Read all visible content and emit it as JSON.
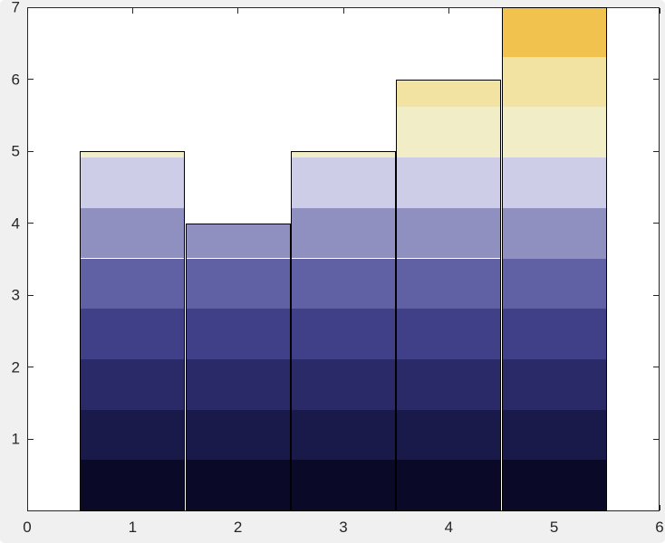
{
  "chart_data": {
    "type": "bar",
    "title": "",
    "xlabel": "",
    "ylabel": "",
    "x": [
      1,
      2,
      3,
      4,
      5
    ],
    "values": [
      5,
      4,
      5,
      6,
      7
    ],
    "bar_width": 1,
    "xlim": [
      0,
      6
    ],
    "ylim": [
      0,
      7
    ],
    "xticks": [
      0,
      1,
      2,
      3,
      4,
      5,
      6
    ],
    "yticks": [
      1,
      2,
      3,
      4,
      5,
      6,
      7
    ],
    "grid": false,
    "legend_position": "none",
    "color_band_height": 0.7,
    "band_colors_bottom_to_top": [
      "#0a0a28",
      "#1a1a4a",
      "#2a2a68",
      "#404088",
      "#6060a4",
      "#8f8fc0",
      "#cdcde8",
      "#f1edc6",
      "#f2e3a2",
      "#f2c24e"
    ],
    "bar_edge_color": "#000000",
    "figure_background": "#f0f0f0",
    "axes_background": "#ffffff",
    "axis_color": "#262626",
    "tick_label_color": "#262626"
  }
}
